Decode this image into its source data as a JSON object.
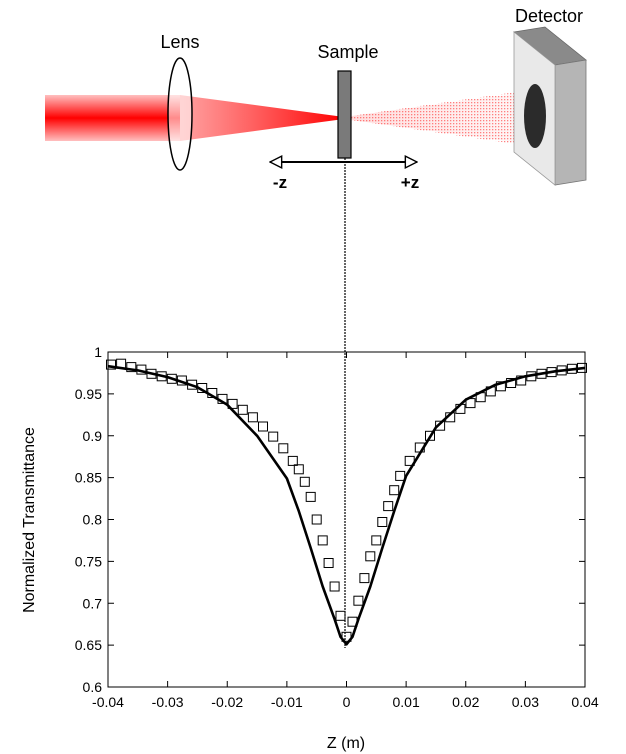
{
  "setup": {
    "lens_label": "Lens",
    "sample_label": "Sample",
    "detector_label": "Detector",
    "minus_z_label": "-z",
    "plus_z_label": "+z",
    "beam_color": "#ff0000",
    "sample_color": "#7a7a7a"
  },
  "chart_data": {
    "type": "scatter",
    "xlabel": "Z (m)",
    "ylabel": "Normalized Transmittance",
    "xlim": [
      -0.04,
      0.04
    ],
    "ylim": [
      0.6,
      1.0
    ],
    "x_ticks": [
      -0.04,
      -0.03,
      -0.02,
      -0.01,
      0,
      0.01,
      0.02,
      0.03,
      0.04
    ],
    "x_tick_labels": [
      "-0.04",
      "-0.03",
      "-0.02",
      "-0.01",
      "0",
      "0.01",
      "0.02",
      "0.03",
      "0.04"
    ],
    "y_ticks": [
      0.6,
      0.65,
      0.7,
      0.75,
      0.8,
      0.85,
      0.9,
      0.95,
      1.0
    ],
    "y_tick_labels": [
      "0.6",
      "0.65",
      "0.7",
      "0.75",
      "0.8",
      "0.85",
      "0.9",
      "0.95",
      "1"
    ],
    "grid": false,
    "series": [
      {
        "marker": "open-square",
        "x": [
          -0.0395,
          -0.0378,
          -0.0361,
          -0.0344,
          -0.0327,
          -0.031,
          -0.0293,
          -0.0276,
          -0.0259,
          -0.0242,
          -0.0225,
          -0.0208,
          -0.0191,
          -0.0174,
          -0.0157,
          -0.014,
          -0.0123,
          -0.0106,
          -0.009,
          -0.008,
          -0.007,
          -0.006,
          -0.005,
          -0.004,
          -0.003,
          -0.002,
          -0.001,
          0.0,
          0.001,
          0.002,
          0.003,
          0.004,
          0.005,
          0.006,
          0.007,
          0.008,
          0.009,
          0.0106,
          0.0123,
          0.014,
          0.0157,
          0.0174,
          0.0191,
          0.0208,
          0.0225,
          0.0242,
          0.0259,
          0.0276,
          0.0293,
          0.031,
          0.0327,
          0.0344,
          0.0361,
          0.0378,
          0.0395
        ],
        "y": [
          0.985,
          0.986,
          0.982,
          0.979,
          0.974,
          0.971,
          0.968,
          0.966,
          0.961,
          0.957,
          0.951,
          0.944,
          0.938,
          0.931,
          0.922,
          0.911,
          0.899,
          0.885,
          0.87,
          0.86,
          0.845,
          0.827,
          0.8,
          0.775,
          0.748,
          0.72,
          0.685,
          0.66,
          0.678,
          0.703,
          0.73,
          0.756,
          0.775,
          0.797,
          0.816,
          0.835,
          0.852,
          0.87,
          0.886,
          0.9,
          0.912,
          0.922,
          0.932,
          0.939,
          0.946,
          0.953,
          0.959,
          0.963,
          0.966,
          0.971,
          0.974,
          0.976,
          0.978,
          0.98,
          0.981
        ]
      },
      {
        "marker": "line",
        "x": [
          -0.04,
          -0.035,
          -0.03,
          -0.025,
          -0.02,
          -0.015,
          -0.01,
          -0.008,
          -0.006,
          -0.004,
          -0.002,
          -0.001,
          0.0,
          0.001,
          0.002,
          0.004,
          0.006,
          0.008,
          0.01,
          0.015,
          0.02,
          0.025,
          0.03,
          0.035,
          0.04
        ],
        "y": [
          0.983,
          0.978,
          0.97,
          0.958,
          0.937,
          0.9,
          0.849,
          0.81,
          0.766,
          0.72,
          0.681,
          0.66,
          0.651,
          0.66,
          0.681,
          0.72,
          0.766,
          0.81,
          0.852,
          0.91,
          0.943,
          0.961,
          0.971,
          0.977,
          0.981
        ]
      }
    ]
  }
}
